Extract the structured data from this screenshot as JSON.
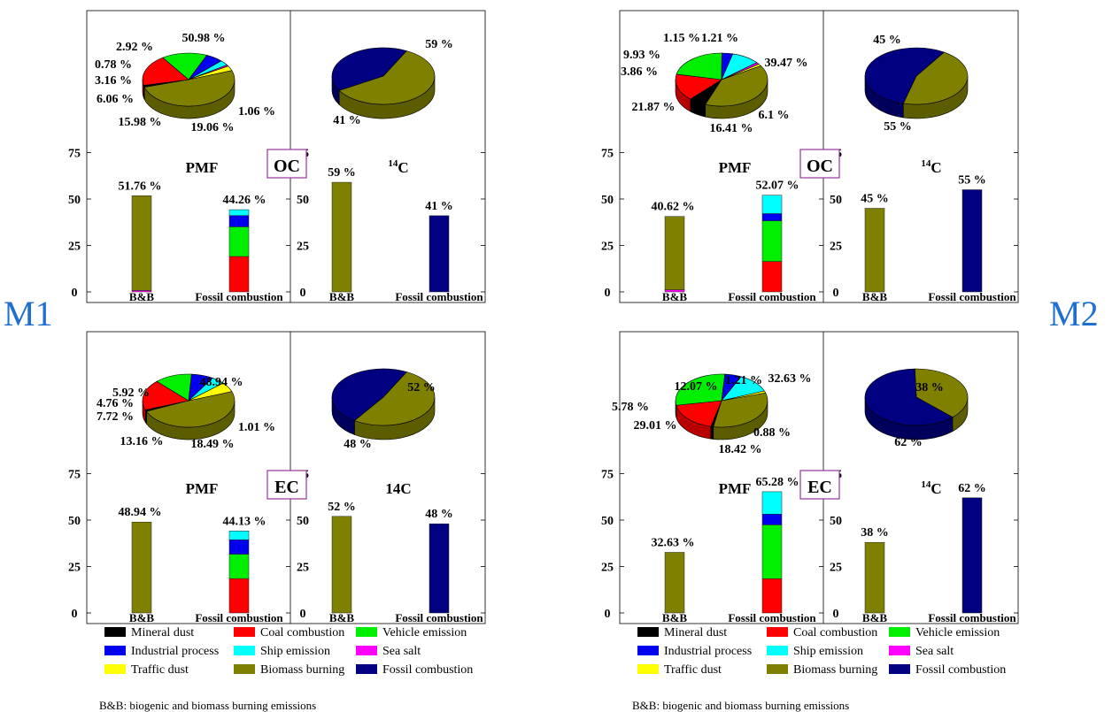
{
  "colors": {
    "mineral_dust": "#000000",
    "coal_combustion": "#ff0000",
    "vehicle_emission": "#00ee00",
    "industrial_process": "#0000ee",
    "ship_emission": "#00ffff",
    "sea_salt": "#ff00ff",
    "traffic_dust": "#ffff00",
    "biomass_burning": "#808000",
    "fossil_combustion": "#000080",
    "site_label": "#1f6fd0",
    "tag_border": "#993399"
  },
  "site_labels": [
    "M1",
    "M2"
  ],
  "legend": {
    "items": [
      {
        "key": "mineral_dust",
        "label": "Mineral dust"
      },
      {
        "key": "coal_combustion",
        "label": "Coal combustion"
      },
      {
        "key": "vehicle_emission",
        "label": "Vehicle emission"
      },
      {
        "key": "industrial_process",
        "label": "Industrial process"
      },
      {
        "key": "ship_emission",
        "label": "Ship emission"
      },
      {
        "key": "sea_salt",
        "label": "Sea salt"
      },
      {
        "key": "traffic_dust",
        "label": "Traffic dust"
      },
      {
        "key": "biomass_burning",
        "label": "Biomass burning"
      },
      {
        "key": "fossil_combustion",
        "label": "Fossil combustion"
      }
    ],
    "note": "B&B:  biogenic and  biomass burning emissions"
  },
  "chart_data": [
    {
      "type": "bar",
      "site": "M1",
      "species": "OC",
      "pmf_label": "PMF",
      "c14_label_pre": "14",
      "c14_label": "C",
      "categories": [
        "B&B",
        "Fossil combustion",
        "B&B",
        "Fossil combustion"
      ],
      "y_ticks": [
        "0",
        "25",
        "50",
        "75"
      ],
      "ylim": [
        0,
        100
      ],
      "pmf_pie": [
        {
          "key": "biomass_burning",
          "value": 50.98,
          "label": "50.98 %"
        },
        {
          "key": "mineral_dust",
          "value": 1.06,
          "label": "1.06 %"
        },
        {
          "key": "coal_combustion",
          "value": 19.06,
          "label": "19.06 %"
        },
        {
          "key": "vehicle_emission",
          "value": 15.98,
          "label": "15.98 %"
        },
        {
          "key": "industrial_process",
          "value": 6.06,
          "label": "6.06 %"
        },
        {
          "key": "ship_emission",
          "value": 3.16,
          "label": "3.16 %"
        },
        {
          "key": "sea_salt",
          "value": 0.78,
          "label": "0.78 %"
        },
        {
          "key": "traffic_dust",
          "value": 2.92,
          "label": "2.92 %"
        }
      ],
      "c14_pie": [
        {
          "key": "biomass_burning",
          "value": 59,
          "label": "59 %"
        },
        {
          "key": "fossil_combustion",
          "value": 41,
          "label": "41 %"
        }
      ],
      "pmf_bb": {
        "label": "51.76 %",
        "stack": [
          {
            "key": "sea_salt",
            "value": 0.78
          },
          {
            "key": "biomass_burning",
            "value": 50.98
          }
        ]
      },
      "pmf_fossil": {
        "label": "44.26 %",
        "stack": [
          {
            "key": "coal_combustion",
            "value": 19.06
          },
          {
            "key": "vehicle_emission",
            "value": 15.98
          },
          {
            "key": "industrial_process",
            "value": 6.06
          },
          {
            "key": "ship_emission",
            "value": 3.16
          }
        ]
      },
      "c14_bb": {
        "label": "59 %",
        "value": 59
      },
      "c14_fossil": {
        "label": "41 %",
        "value": 41
      }
    },
    {
      "type": "bar",
      "site": "M2",
      "species": "OC",
      "pmf_label": "PMF",
      "c14_label_pre": "14",
      "c14_label": "C",
      "categories": [
        "B&B",
        "Fossil combustion",
        "B&B",
        "Fossil combustion"
      ],
      "y_ticks": [
        "0",
        "25",
        "50",
        "75"
      ],
      "ylim": [
        0,
        100
      ],
      "pmf_pie": [
        {
          "key": "biomass_burning",
          "value": 39.47,
          "label": "39.47 %"
        },
        {
          "key": "mineral_dust",
          "value": 6.1,
          "label": "6.1 %"
        },
        {
          "key": "coal_combustion",
          "value": 16.41,
          "label": "16.41 %"
        },
        {
          "key": "vehicle_emission",
          "value": 21.87,
          "label": "21.87 %"
        },
        {
          "key": "industrial_process",
          "value": 3.86,
          "label": "3.86 %"
        },
        {
          "key": "ship_emission",
          "value": 9.93,
          "label": "9.93 %"
        },
        {
          "key": "sea_salt",
          "value": 1.15,
          "label": "1.15 %"
        },
        {
          "key": "traffic_dust",
          "value": 1.21,
          "label": "1.21 %"
        }
      ],
      "c14_pie": [
        {
          "key": "biomass_burning",
          "value": 45,
          "label": "45 %"
        },
        {
          "key": "fossil_combustion",
          "value": 55,
          "label": "55 %"
        }
      ],
      "pmf_bb": {
        "label": "40.62 %",
        "stack": [
          {
            "key": "sea_salt",
            "value": 1.15
          },
          {
            "key": "biomass_burning",
            "value": 39.47
          }
        ]
      },
      "pmf_fossil": {
        "label": "52.07 %",
        "stack": [
          {
            "key": "coal_combustion",
            "value": 16.41
          },
          {
            "key": "vehicle_emission",
            "value": 21.87
          },
          {
            "key": "industrial_process",
            "value": 3.86
          },
          {
            "key": "ship_emission",
            "value": 9.93
          }
        ]
      },
      "c14_bb": {
        "label": "45 %",
        "value": 45
      },
      "c14_fossil": {
        "label": "55 %",
        "value": 55
      }
    },
    {
      "type": "bar",
      "site": "M1",
      "species": "EC",
      "pmf_label": "PMF",
      "c14_label_pre": "",
      "c14_label": "14C",
      "categories": [
        "B&B",
        "Fossil combustion",
        "B&B",
        "Fossil combustion"
      ],
      "y_ticks": [
        "0",
        "25",
        "50",
        "75"
      ],
      "ylim": [
        0,
        100
      ],
      "pmf_pie": [
        {
          "key": "biomass_burning",
          "value": 48.94,
          "label": "48.94 %"
        },
        {
          "key": "mineral_dust",
          "value": 1.01,
          "label": "1.01 %"
        },
        {
          "key": "coal_combustion",
          "value": 18.49,
          "label": "18.49 %"
        },
        {
          "key": "vehicle_emission",
          "value": 13.16,
          "label": "13.16 %"
        },
        {
          "key": "industrial_process",
          "value": 7.72,
          "label": "7.72 %"
        },
        {
          "key": "ship_emission",
          "value": 4.76,
          "label": "4.76 %"
        },
        {
          "key": "traffic_dust",
          "value": 5.92,
          "label": "5.92 %"
        }
      ],
      "c14_pie": [
        {
          "key": "biomass_burning",
          "value": 52,
          "label": "52 %"
        },
        {
          "key": "fossil_combustion",
          "value": 48,
          "label": "48 %"
        }
      ],
      "pmf_bb": {
        "label": "48.94 %",
        "stack": [
          {
            "key": "biomass_burning",
            "value": 48.94
          }
        ]
      },
      "pmf_fossil": {
        "label": "44.13 %",
        "stack": [
          {
            "key": "coal_combustion",
            "value": 18.49
          },
          {
            "key": "vehicle_emission",
            "value": 13.16
          },
          {
            "key": "industrial_process",
            "value": 7.72
          },
          {
            "key": "ship_emission",
            "value": 4.76
          }
        ]
      },
      "c14_bb": {
        "label": "52 %",
        "value": 52
      },
      "c14_fossil": {
        "label": "48 %",
        "value": 48
      }
    },
    {
      "type": "bar",
      "site": "M2",
      "species": "EC",
      "pmf_label": "PMF",
      "c14_label_pre": "14",
      "c14_label": "C",
      "categories": [
        "B&B",
        "Fossil combustion",
        "B&B",
        "Fossil combustion"
      ],
      "y_ticks": [
        "0",
        "25",
        "50",
        "75"
      ],
      "ylim": [
        0,
        100
      ],
      "pmf_pie": [
        {
          "key": "biomass_burning",
          "value": 32.63,
          "label": "32.63 %"
        },
        {
          "key": "mineral_dust",
          "value": 0.88,
          "label": "0.88 %"
        },
        {
          "key": "coal_combustion",
          "value": 18.42,
          "label": "18.42 %"
        },
        {
          "key": "vehicle_emission",
          "value": 29.01,
          "label": "29.01 %"
        },
        {
          "key": "industrial_process",
          "value": 5.78,
          "label": "5.78 %"
        },
        {
          "key": "ship_emission",
          "value": 12.07,
          "label": "12.07 %"
        },
        {
          "key": "traffic_dust",
          "value": 1.21,
          "label": "1.21 %"
        }
      ],
      "c14_pie": [
        {
          "key": "biomass_burning",
          "value": 38,
          "label": "38 %"
        },
        {
          "key": "fossil_combustion",
          "value": 62,
          "label": "62 %"
        }
      ],
      "pmf_bb": {
        "label": "32.63 %",
        "stack": [
          {
            "key": "biomass_burning",
            "value": 32.63
          }
        ]
      },
      "pmf_fossil": {
        "label": "65.28 %",
        "stack": [
          {
            "key": "coal_combustion",
            "value": 18.42
          },
          {
            "key": "vehicle_emission",
            "value": 29.01
          },
          {
            "key": "industrial_process",
            "value": 5.78
          },
          {
            "key": "ship_emission",
            "value": 12.07
          }
        ]
      },
      "c14_bb": {
        "label": "38 %",
        "value": 38
      },
      "c14_fossil": {
        "label": "62 %",
        "value": 62
      }
    }
  ]
}
